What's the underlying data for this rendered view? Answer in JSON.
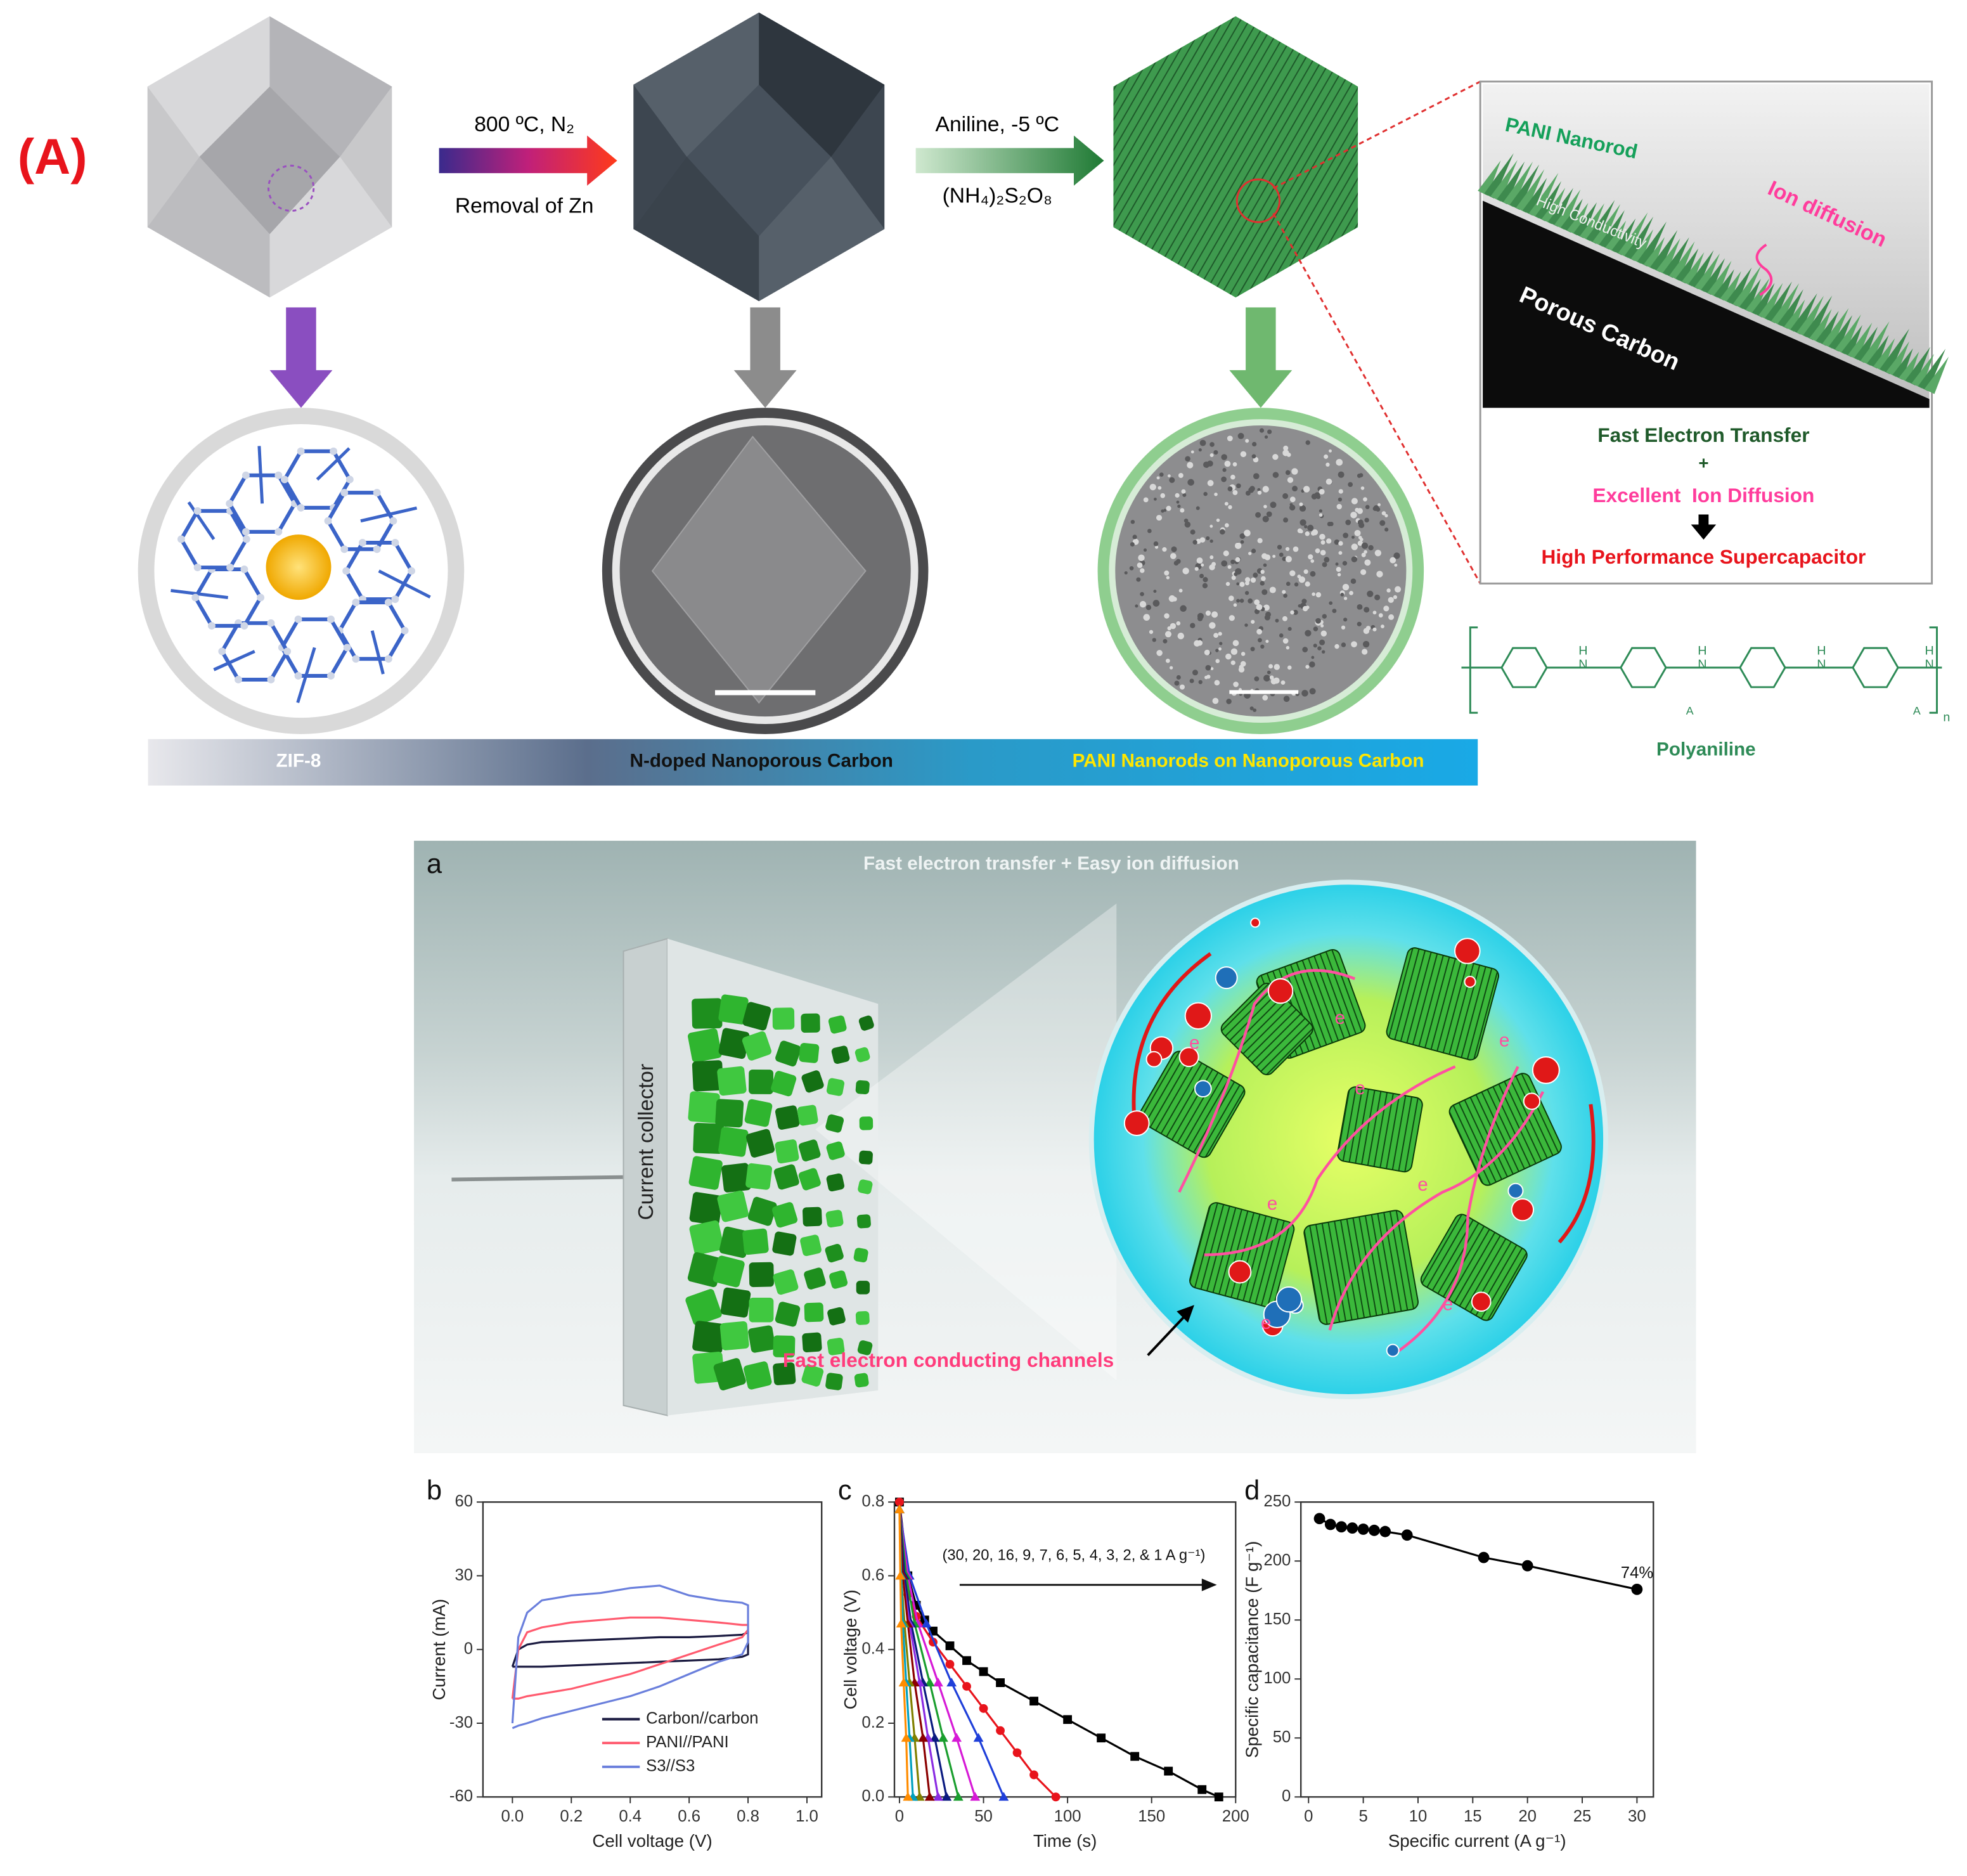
{
  "panel_A": {
    "label": "(A)",
    "step1": [
      "800 ºC, N₂",
      "Removal of Zn"
    ],
    "step2": [
      "Aniline, -5 ºC",
      "(NH₄)₂S₂O₈"
    ],
    "inset": {
      "nanorod": "PANI Nanorod",
      "ion": "Ion diffusion",
      "conductivity": "High Conductivity",
      "carbon": "Porous Carbon",
      "lines": [
        "Fast Electron Transfer",
        "+",
        "Excellent  Ion Diffusion",
        "High Performance Supercapacitor"
      ]
    },
    "polymer": {
      "name": "Polyaniline",
      "atoms": [
        "N",
        "H",
        "A",
        "n"
      ]
    },
    "bar": [
      "ZIF-8",
      "N-doped Nanoporous Carbon",
      "PANI Nanorods on Nanoporous Carbon"
    ]
  },
  "panel_a": {
    "label": "a",
    "title": "Fast electron transfer + Easy ion diffusion",
    "collector": "Current collector",
    "channels": "Fast electron conducting channels",
    "electron": "e"
  },
  "chart_data": [
    {
      "type": "line",
      "label": "b",
      "xlabel": "Cell voltage (V)",
      "ylabel": "Current (mA)",
      "xlim": [
        -0.1,
        1.05
      ],
      "ylim": [
        -60,
        60
      ],
      "xticks": [
        {
          "value": 0,
          "label": "0.0"
        },
        {
          "value": 0.2,
          "label": "0.2"
        },
        {
          "value": 0.4,
          "label": "0.4"
        },
        {
          "value": 0.6,
          "label": "0.6"
        },
        {
          "value": 0.8,
          "label": "0.8"
        },
        {
          "value": 1,
          "label": "1.0"
        }
      ],
      "yticks": [
        -60,
        -30,
        0,
        30,
        60
      ],
      "legend": "lower right",
      "x": [
        0,
        0.02,
        0.05,
        0.1,
        0.2,
        0.3,
        0.4,
        0.5,
        0.6,
        0.7,
        0.78,
        0.8,
        0.8,
        0.78,
        0.7,
        0.6,
        0.5,
        0.4,
        0.3,
        0.2,
        0.1,
        0.05,
        0.02,
        0
      ],
      "series": [
        {
          "name": "Carbon//carbon",
          "color": "#1a1a40",
          "values": [
            -7,
            0,
            2,
            3,
            3.5,
            4,
            4.5,
            5,
            5,
            5.5,
            6,
            7,
            -2,
            -3,
            -4,
            -4.5,
            -5,
            -5.5,
            -6,
            -6.5,
            -7,
            -7,
            -7,
            -7
          ]
        },
        {
          "name": "PANI//PANI",
          "color": "#ff5a6e",
          "values": [
            -20,
            0,
            7,
            9,
            11,
            12,
            13,
            13,
            12,
            11,
            10,
            10,
            8,
            5,
            2,
            -2,
            -6,
            -10,
            -13,
            -16,
            -18,
            -19,
            -20,
            -20
          ]
        },
        {
          "name": "S3//S3",
          "color": "#6a7fdc",
          "values": [
            -30,
            5,
            15,
            20,
            22,
            23,
            25,
            26,
            22,
            20,
            19,
            18,
            3,
            -2,
            -5,
            -10,
            -15,
            -19,
            -22,
            -25,
            -28,
            -30,
            -31,
            -32
          ]
        }
      ]
    },
    {
      "type": "line",
      "label": "c",
      "xlabel": "Time (s)",
      "ylabel": "Cell voltage (V)",
      "xlim": [
        -3,
        200
      ],
      "ylim": [
        0,
        0.8
      ],
      "xticks": [
        0,
        50,
        100,
        150,
        200
      ],
      "yticks": [
        {
          "value": 0,
          "label": "0.0"
        },
        {
          "value": 0.2,
          "label": "0.2"
        },
        {
          "value": 0.4,
          "label": "0.4"
        },
        {
          "value": 0.6,
          "label": "0.6"
        },
        {
          "value": 0.8,
          "label": "0.8"
        }
      ],
      "annotation": "(30, 20, 16, 9, 7, 6, 5, 4, 3, 2, & 1 A g⁻¹)",
      "series": [
        {
          "color": "#000000",
          "marker": "square",
          "x": [
            0,
            5,
            10,
            15,
            20,
            30,
            40,
            50,
            60,
            80,
            100,
            120,
            140,
            160,
            180,
            190
          ],
          "values": [
            0.8,
            0.6,
            0.52,
            0.48,
            0.45,
            0.41,
            0.37,
            0.34,
            0.31,
            0.26,
            0.21,
            0.16,
            0.11,
            0.07,
            0.02,
            0
          ]
        },
        {
          "color": "#e8141c",
          "marker": "circle",
          "x": [
            0,
            5,
            10,
            20,
            30,
            40,
            50,
            60,
            70,
            80,
            93
          ],
          "values": [
            0.8,
            0.55,
            0.49,
            0.42,
            0.36,
            0.3,
            0.24,
            0.18,
            0.12,
            0.06,
            0
          ]
        },
        {
          "color": "#1f3fd9",
          "marker": "triangle",
          "x": [
            0,
            6,
            16,
            31,
            47,
            62
          ],
          "values": [
            0.78,
            0.6,
            0.47,
            0.31,
            0.16,
            0
          ]
        },
        {
          "color": "#d619d6",
          "marker": "triangle",
          "x": [
            0,
            5,
            11,
            23,
            34,
            45
          ],
          "values": [
            0.78,
            0.6,
            0.47,
            0.31,
            0.16,
            0
          ]
        },
        {
          "color": "#1a9e2e",
          "marker": "triangle",
          "x": [
            0,
            4,
            9,
            18,
            26,
            35
          ],
          "values": [
            0.78,
            0.6,
            0.47,
            0.31,
            0.16,
            0
          ]
        },
        {
          "color": "#0a1a80",
          "marker": "triangle",
          "x": [
            0,
            3,
            7,
            14,
            21,
            28
          ],
          "values": [
            0.78,
            0.6,
            0.47,
            0.31,
            0.16,
            0
          ]
        },
        {
          "color": "#8a2be2",
          "marker": "triangle",
          "x": [
            0,
            2,
            6,
            12,
            17,
            23
          ],
          "values": [
            0.78,
            0.6,
            0.47,
            0.31,
            0.16,
            0
          ]
        },
        {
          "color": "#8b0000",
          "marker": "triangle",
          "x": [
            0,
            2,
            5,
            9,
            14,
            18
          ],
          "values": [
            0.78,
            0.6,
            0.47,
            0.31,
            0.16,
            0
          ]
        },
        {
          "color": "#808000",
          "marker": "triangle",
          "x": [
            0,
            1,
            3,
            6,
            9,
            12
          ],
          "values": [
            0.78,
            0.6,
            0.47,
            0.31,
            0.16,
            0
          ]
        },
        {
          "color": "#00a0c0",
          "marker": "triangle",
          "x": [
            0,
            1,
            2,
            4,
            6,
            8
          ],
          "values": [
            0.78,
            0.6,
            0.47,
            0.31,
            0.16,
            0
          ]
        },
        {
          "color": "#ff8c00",
          "marker": "triangle",
          "x": [
            0,
            0.5,
            1,
            2.5,
            4,
            5
          ],
          "values": [
            0.78,
            0.6,
            0.47,
            0.31,
            0.16,
            0
          ]
        }
      ]
    },
    {
      "type": "line",
      "label": "d",
      "xlabel": "Specific current (A g⁻¹)",
      "ylabel": "Specific capacitance (F g⁻¹)",
      "xlim": [
        -0.7,
        31.5
      ],
      "ylim": [
        0,
        250
      ],
      "xticks": [
        0,
        5,
        10,
        15,
        20,
        25,
        30
      ],
      "yticks": [
        0,
        50,
        100,
        150,
        200,
        250
      ],
      "annotation": "74%",
      "x": [
        1,
        2,
        3,
        4,
        5,
        6,
        7,
        9,
        16,
        20,
        30
      ],
      "series": [
        {
          "color": "#000000",
          "marker": "circle",
          "values": [
            236,
            231,
            229,
            228,
            227,
            226,
            225,
            222,
            203,
            196,
            176
          ]
        }
      ]
    }
  ]
}
